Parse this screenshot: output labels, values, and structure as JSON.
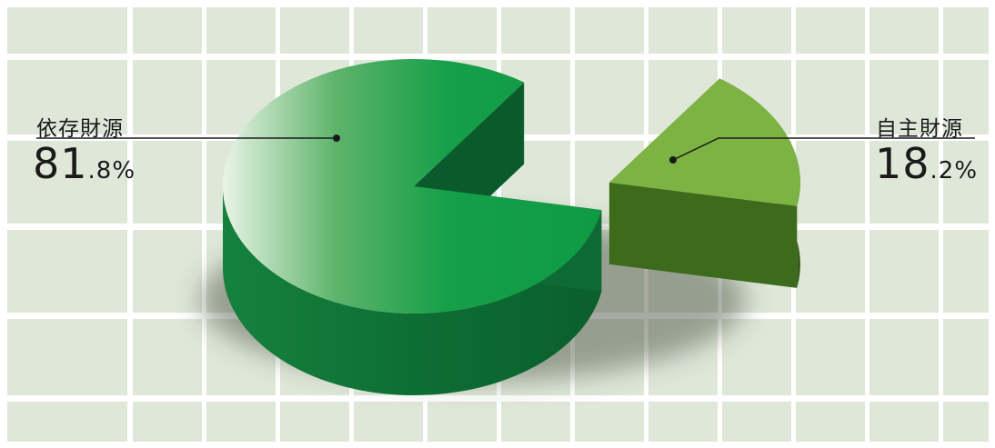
{
  "chart_data": {
    "type": "pie",
    "slices": [
      {
        "label": "依存財源",
        "value": 81.8,
        "value_int": "81",
        "value_frac": ".8%",
        "color": "#14a045",
        "side_color": "#0d7a3a",
        "exploded": false
      },
      {
        "label": "自主財源",
        "value": 18.2,
        "value_int": "18",
        "value_frac": ".2%",
        "color": "#7cb342",
        "side_color": "#3f6a1c",
        "exploded": true
      }
    ],
    "style": "3d",
    "grid": true,
    "background_color": "#dfe7d9"
  }
}
